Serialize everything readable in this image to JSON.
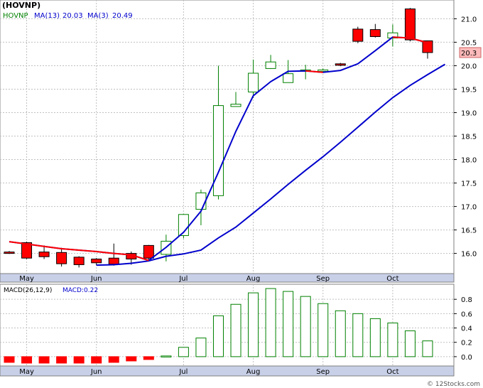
{
  "chart_data": [
    {
      "type": "candlestick",
      "title": "(HOVNP)",
      "legend": [
        {
          "label": "HOVNP",
          "color": "#008000"
        },
        {
          "label": "MA(13)",
          "value": "20.03",
          "color": "#0000cc"
        },
        {
          "label": "MA(3)",
          "value": "20.49",
          "color": "#0000cc"
        }
      ],
      "ylim": [
        15.57,
        21.4
      ],
      "yticks": [
        16.0,
        16.5,
        17.0,
        17.5,
        18.0,
        18.5,
        19.0,
        19.5,
        20.0,
        20.5,
        21.0
      ],
      "ytick_labels": [
        "16.0",
        "16.5",
        "17.0",
        "17.5",
        "18.0",
        "18.5",
        "19.0",
        "19.5",
        "20.0",
        "20.5",
        "21.0"
      ],
      "last_price_label": "20.3",
      "x_labels": [
        {
          "label": "May",
          "week": 1
        },
        {
          "label": "Jun",
          "week": 5
        },
        {
          "label": "Jul",
          "week": 10
        },
        {
          "label": "Aug",
          "week": 14
        },
        {
          "label": "Sep",
          "week": 18
        },
        {
          "label": "Oct",
          "week": 22
        }
      ],
      "candles": [
        {
          "week": 0,
          "open": 16.03,
          "high": 16.05,
          "low": 15.99,
          "close": 16.01
        },
        {
          "week": 1,
          "open": 16.23,
          "high": 16.25,
          "low": 15.88,
          "close": 15.9
        },
        {
          "week": 2,
          "open": 16.03,
          "high": 16.17,
          "low": 15.88,
          "close": 15.93
        },
        {
          "week": 3,
          "open": 16.02,
          "high": 16.12,
          "low": 15.72,
          "close": 15.78
        },
        {
          "week": 4,
          "open": 15.92,
          "high": 15.94,
          "low": 15.7,
          "close": 15.76
        },
        {
          "week": 5,
          "open": 15.88,
          "high": 15.9,
          "low": 15.75,
          "close": 15.8
        },
        {
          "week": 6,
          "open": 15.9,
          "high": 16.21,
          "low": 15.74,
          "close": 15.77
        },
        {
          "week": 7,
          "open": 16.0,
          "high": 16.04,
          "low": 15.76,
          "close": 15.88
        },
        {
          "week": 8,
          "open": 16.17,
          "high": 16.18,
          "low": 15.84,
          "close": 15.9
        },
        {
          "week": 9,
          "open": 15.98,
          "high": 16.4,
          "low": 15.83,
          "close": 16.26
        },
        {
          "week": 10,
          "open": 16.38,
          "high": 16.84,
          "low": 16.32,
          "close": 16.83
        },
        {
          "week": 11,
          "open": 16.94,
          "high": 17.36,
          "low": 16.6,
          "close": 17.29
        },
        {
          "week": 12,
          "open": 17.23,
          "high": 20.0,
          "low": 17.15,
          "close": 19.15
        },
        {
          "week": 13,
          "open": 19.13,
          "high": 19.44,
          "low": 19.13,
          "close": 19.18
        },
        {
          "week": 14,
          "open": 19.44,
          "high": 20.13,
          "low": 19.31,
          "close": 19.84
        },
        {
          "week": 15,
          "open": 19.94,
          "high": 20.23,
          "low": 19.93,
          "close": 20.08
        },
        {
          "week": 16,
          "open": 19.64,
          "high": 20.12,
          "low": 19.64,
          "close": 19.83
        },
        {
          "week": 17,
          "open": 19.91,
          "high": 20.02,
          "low": 19.71,
          "close": 19.91
        },
        {
          "week": 18,
          "open": 19.89,
          "high": 19.94,
          "low": 19.87,
          "close": 19.91
        },
        {
          "week": 19,
          "open": 20.04,
          "high": 20.06,
          "low": 19.99,
          "close": 20.02
        },
        {
          "week": 20,
          "open": 20.78,
          "high": 20.83,
          "low": 20.48,
          "close": 20.52
        },
        {
          "week": 21,
          "open": 20.77,
          "high": 20.89,
          "low": 20.6,
          "close": 20.62
        },
        {
          "week": 22,
          "open": 20.59,
          "high": 20.88,
          "low": 20.41,
          "close": 20.7
        },
        {
          "week": 23,
          "open": 21.21,
          "high": 21.23,
          "low": 20.52,
          "close": 20.55
        },
        {
          "week": 24,
          "open": 20.53,
          "high": 20.53,
          "low": 20.15,
          "close": 20.28
        }
      ],
      "ma_long": {
        "name": "MA(13)",
        "color": "#0000cc",
        "points": [
          [
            5,
            15.75
          ],
          [
            6,
            15.76
          ],
          [
            7,
            15.79
          ],
          [
            8,
            15.84
          ],
          [
            9,
            15.94
          ],
          [
            10,
            15.99
          ],
          [
            11,
            16.07
          ],
          [
            12,
            16.33
          ],
          [
            13,
            16.56
          ],
          [
            14,
            16.86
          ],
          [
            15,
            17.16
          ],
          [
            16,
            17.47
          ],
          [
            17,
            17.77
          ],
          [
            18,
            18.06
          ],
          [
            19,
            18.37
          ],
          [
            20,
            18.69
          ],
          [
            21,
            19.01
          ],
          [
            22,
            19.32
          ],
          [
            23,
            19.58
          ],
          [
            24,
            19.81
          ],
          [
            25,
            20.03
          ]
        ]
      },
      "ma_short": {
        "name": "MA(3)",
        "color_up": "#0000cc",
        "color_down": "#ff0000",
        "points": [
          [
            0,
            16.25
          ],
          [
            1,
            16.2
          ],
          [
            2,
            16.15
          ],
          [
            3,
            16.1
          ],
          [
            4,
            16.07
          ],
          [
            5,
            16.04
          ],
          [
            6,
            16.0
          ],
          [
            7,
            15.97
          ],
          [
            8,
            15.85
          ],
          [
            9,
            16.13
          ],
          [
            10,
            16.45
          ],
          [
            11,
            16.9
          ],
          [
            12,
            17.73
          ],
          [
            13,
            18.6
          ],
          [
            14,
            19.36
          ],
          [
            15,
            19.66
          ],
          [
            16,
            19.88
          ],
          [
            17,
            19.89
          ],
          [
            18,
            19.86
          ],
          [
            19,
            19.9
          ],
          [
            20,
            20.04
          ],
          [
            21,
            20.32
          ],
          [
            22,
            20.61
          ],
          [
            23,
            20.59
          ],
          [
            24,
            20.49
          ]
        ],
        "red_segments": [
          [
            0,
            8
          ],
          [
            17,
            18
          ],
          [
            22,
            24
          ]
        ]
      }
    },
    {
      "type": "bar",
      "title": "MACD(26,12,9)",
      "value_label": "MACD:0.22",
      "ylim": [
        -0.13,
        1.01
      ],
      "yticks": [
        0.0,
        0.2,
        0.4,
        0.6,
        0.8
      ],
      "ytick_labels": [
        "0.0",
        "0.2",
        "0.4",
        "0.6",
        "0.8"
      ],
      "weeks": [
        0,
        1,
        2,
        3,
        4,
        5,
        6,
        7,
        8,
        9,
        10,
        11,
        12,
        13,
        14,
        15,
        16,
        17,
        18,
        19,
        20,
        21,
        22,
        23,
        24
      ],
      "values": [
        -0.08,
        -0.09,
        -0.09,
        -0.09,
        -0.09,
        -0.09,
        -0.08,
        -0.06,
        -0.04,
        0.01,
        0.13,
        0.26,
        0.57,
        0.73,
        0.89,
        0.95,
        0.91,
        0.84,
        0.74,
        0.64,
        0.6,
        0.53,
        0.47,
        0.36,
        0.22
      ],
      "x_labels": [
        {
          "label": "May",
          "week": 1
        },
        {
          "label": "Jun",
          "week": 5
        },
        {
          "label": "Jul",
          "week": 10
        },
        {
          "label": "Aug",
          "week": 14
        },
        {
          "label": "Sep",
          "week": 18
        },
        {
          "label": "Oct",
          "week": 22
        }
      ]
    }
  ],
  "watermark": "© 12Stocks.com",
  "colors": {
    "up_candle": "#008000",
    "down_candle": "#ff0000",
    "ma": "#0000cc",
    "grid": "#c0c0c0",
    "axis_band": "#c8d0e8",
    "price_tag": "#ffbbbb"
  }
}
